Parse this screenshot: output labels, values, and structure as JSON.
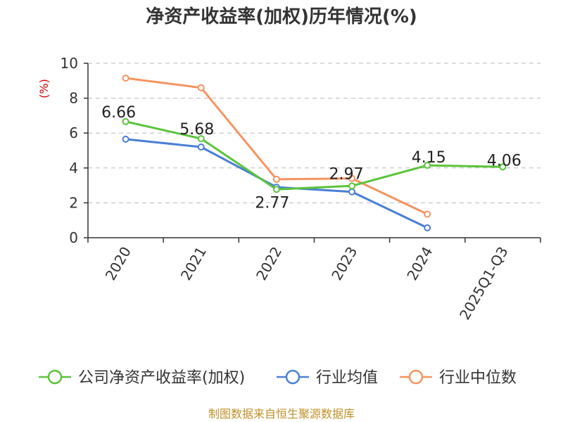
{
  "chart_data": {
    "type": "line",
    "title": "净资产收益率(加权)历年情况(%)",
    "ylabel": "(%)",
    "xlabel": "",
    "categories": [
      "2020",
      "2021",
      "2022",
      "2023",
      "2024",
      "2025Q1-Q3"
    ],
    "ylim": [
      0,
      10
    ],
    "yticks": [
      0,
      2,
      4,
      6,
      8,
      10
    ],
    "grid": true,
    "legend_position": "bottom",
    "series": [
      {
        "name": "公司净资产收益率(加权)",
        "color": "#5ac43a",
        "values": [
          6.66,
          5.68,
          2.77,
          2.97,
          4.15,
          4.06
        ],
        "labels": [
          "6.66",
          "5.68",
          "2.77",
          "2.97",
          "4.15",
          "4.06"
        ]
      },
      {
        "name": "行业均值",
        "color": "#4a7fd6",
        "values": [
          5.65,
          5.2,
          2.9,
          2.63,
          0.57,
          null
        ],
        "labels": null
      },
      {
        "name": "行业中位数",
        "color": "#f59461",
        "values": [
          9.15,
          8.6,
          3.35,
          3.4,
          1.35,
          null
        ],
        "labels": null
      }
    ],
    "source": "制图数据来自恒生聚源数据库"
  }
}
